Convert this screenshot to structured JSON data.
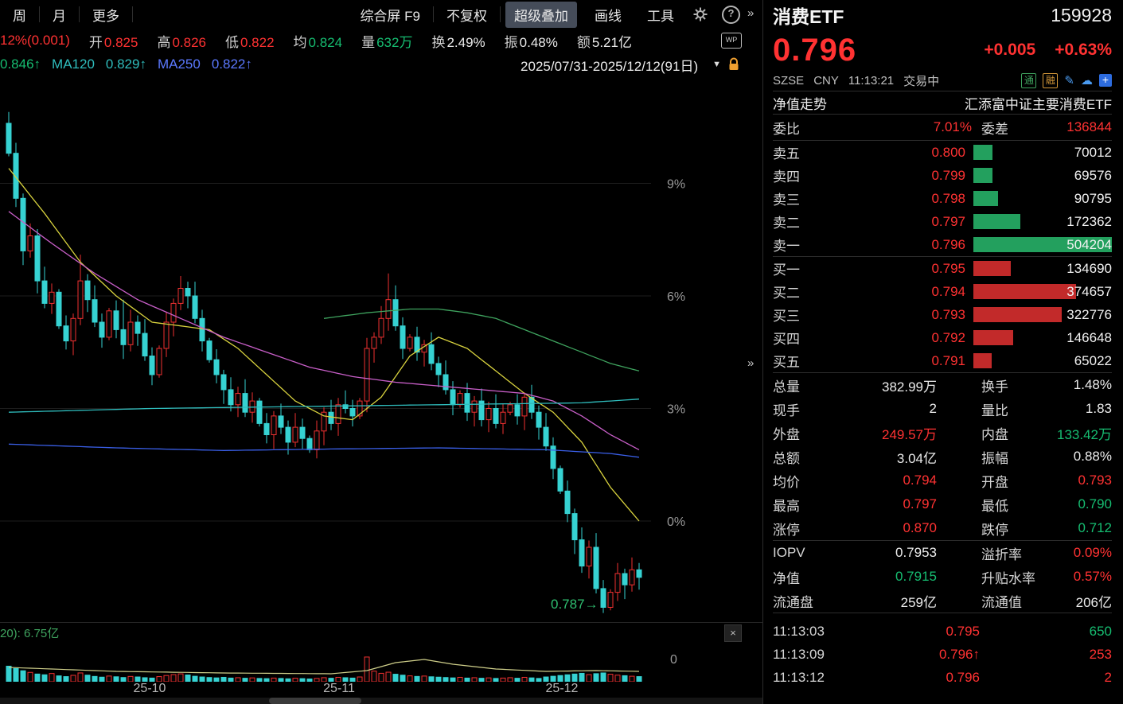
{
  "toolbar": {
    "tabs": [
      "周",
      "月",
      "更多"
    ],
    "tools": [
      "综合屏 F9",
      "不复权",
      "超级叠加",
      "画线",
      "工具"
    ]
  },
  "icons": {
    "help": "?",
    "chevron_top": "»",
    "chevron_mid": "»",
    "edit": "✎",
    "cloud": "☁",
    "add": "+",
    "caret": "▼",
    "close": "×"
  },
  "info_bar": {
    "change": "12%(0.001)",
    "wp": "WP",
    "fields": [
      {
        "label": "开",
        "value": "0.825"
      },
      {
        "label": "高",
        "value": "0.826"
      },
      {
        "label": "低",
        "value": "0.822"
      },
      {
        "label": "均",
        "value": "0.824"
      },
      {
        "label": "量",
        "value": "632万"
      },
      {
        "label": "换",
        "value": "2.49%"
      },
      {
        "label": "振",
        "value": "0.48%"
      },
      {
        "label": "额",
        "value": "5.21亿"
      }
    ]
  },
  "ma_bar": {
    "ma1": "0.846↑",
    "ma2_label": "MA120",
    "ma2": "0.829↑",
    "ma3_label": "MA250",
    "ma3": "0.822↑",
    "date_range": "2025/07/31-2025/12/12(91日)"
  },
  "volume_panel": {
    "header": "20): 6.75亿",
    "zero": "0"
  },
  "chart_data": {
    "type": "candlestick",
    "title": "消费ETF 日K 2025/07/31-2025/12/12(91日)",
    "unit": "percent-change",
    "open_first": 10.6,
    "closes": [
      9.8,
      8.6,
      7.2,
      7.6,
      6.4,
      5.8,
      6.1,
      5.2,
      4.8,
      5.4,
      6.4,
      5.9,
      5.3,
      4.9,
      5.6,
      5.1,
      4.7,
      5.3,
      5.0,
      4.4,
      3.9,
      4.6,
      5.3,
      5.8,
      6.2,
      6.0,
      5.4,
      4.8,
      4.3,
      3.9,
      3.5,
      3.1,
      3.4,
      2.9,
      3.2,
      2.6,
      2.3,
      2.8,
      2.5,
      2.1,
      2.5,
      2.2,
      1.9,
      2.4,
      2.9,
      2.6,
      3.1,
      3.0,
      2.8,
      3.2,
      4.6,
      4.9,
      5.4,
      5.9,
      5.2,
      4.6,
      4.9,
      4.5,
      4.7,
      4.2,
      3.9,
      3.5,
      3.1,
      3.4,
      2.9,
      3.2,
      2.7,
      3.0,
      2.6,
      2.9,
      3.1,
      2.8,
      3.3,
      2.9,
      2.5,
      2.0,
      1.4,
      0.8,
      0.2,
      -0.5,
      -1.2,
      -0.7,
      -1.8,
      -2.3,
      -1.9,
      -1.4,
      -1.7,
      -1.3,
      -1.5
    ],
    "volumes": [
      8.5,
      7.2,
      6.0,
      5.1,
      4.2,
      3.8,
      4.5,
      3.2,
      2.8,
      3.5,
      4.8,
      3.6,
      2.9,
      2.5,
      3.1,
      2.7,
      2.3,
      2.9,
      2.6,
      2.2,
      2.0,
      2.8,
      3.4,
      3.9,
      4.3,
      3.7,
      3.0,
      2.6,
      2.3,
      2.1,
      2.4,
      2.0,
      2.2,
      1.9,
      2.1,
      1.8,
      1.7,
      2.0,
      1.8,
      1.6,
      1.9,
      1.7,
      1.5,
      1.8,
      2.2,
      1.9,
      2.4,
      2.2,
      2.0,
      2.6,
      13.5,
      5.8,
      4.6,
      5.2,
      4.1,
      3.6,
      3.2,
      2.9,
      3.1,
      2.7,
      2.5,
      2.3,
      2.1,
      2.4,
      2.0,
      2.2,
      1.9,
      2.1,
      1.8,
      2.0,
      2.2,
      1.9,
      2.4,
      2.1,
      1.8,
      2.6,
      3.0,
      3.4,
      3.8,
      4.2,
      4.6,
      3.9,
      4.4,
      4.8,
      4.1,
      3.6,
      3.3,
      3.0,
      2.8
    ],
    "wick_overrides": {
      "0": {
        "h": 10.9
      },
      "10": {
        "h": 7.1
      },
      "16": {
        "h": 5.9
      },
      "50": {
        "l": 2.9
      },
      "53": {
        "h": 6.6
      },
      "83": {
        "l": -2.45
      }
    },
    "ma_lines": [
      {
        "name": "ma-line-yellow",
        "color": "#d8d23e",
        "points": [
          [
            0,
            9.4
          ],
          [
            5,
            8.2
          ],
          [
            10,
            6.9
          ],
          [
            15,
            6.0
          ],
          [
            20,
            5.3
          ],
          [
            24,
            5.2
          ],
          [
            28,
            5.1
          ],
          [
            32,
            4.6
          ],
          [
            36,
            3.9
          ],
          [
            40,
            3.2
          ],
          [
            44,
            2.8
          ],
          [
            48,
            2.7
          ],
          [
            52,
            3.3
          ],
          [
            56,
            4.4
          ],
          [
            60,
            4.9
          ],
          [
            64,
            4.6
          ],
          [
            68,
            4.0
          ],
          [
            72,
            3.4
          ],
          [
            76,
            2.9
          ],
          [
            80,
            2.1
          ],
          [
            84,
            0.9
          ],
          [
            88,
            0.0
          ]
        ]
      },
      {
        "name": "ma-line-magenta",
        "color": "#c95fc9",
        "points": [
          [
            0,
            8.25
          ],
          [
            6,
            7.4
          ],
          [
            12,
            6.6
          ],
          [
            18,
            5.9
          ],
          [
            24,
            5.4
          ],
          [
            30,
            4.9
          ],
          [
            36,
            4.5
          ],
          [
            42,
            4.1
          ],
          [
            48,
            3.85
          ],
          [
            54,
            3.7
          ],
          [
            60,
            3.6
          ],
          [
            66,
            3.5
          ],
          [
            72,
            3.4
          ],
          [
            76,
            3.2
          ],
          [
            80,
            2.8
          ],
          [
            84,
            2.3
          ],
          [
            88,
            1.9
          ]
        ]
      },
      {
        "name": "ma-line-green",
        "color": "#3fa45f",
        "points": [
          [
            44,
            5.4
          ],
          [
            50,
            5.55
          ],
          [
            56,
            5.65
          ],
          [
            60,
            5.65
          ],
          [
            64,
            5.55
          ],
          [
            68,
            5.4
          ],
          [
            72,
            5.1
          ],
          [
            76,
            4.8
          ],
          [
            80,
            4.5
          ],
          [
            84,
            4.2
          ],
          [
            88,
            4.0
          ]
        ]
      },
      {
        "name": "ma-line-cyan",
        "color": "#2fbdbd",
        "points": [
          [
            0,
            2.9
          ],
          [
            20,
            3.0
          ],
          [
            40,
            3.05
          ],
          [
            60,
            3.1
          ],
          [
            80,
            3.15
          ],
          [
            88,
            3.25
          ]
        ]
      },
      {
        "name": "ma-line-blue",
        "color": "#3a5fe8",
        "points": [
          [
            0,
            2.05
          ],
          [
            15,
            1.95
          ],
          [
            30,
            1.88
          ],
          [
            45,
            1.92
          ],
          [
            60,
            1.95
          ],
          [
            75,
            1.9
          ],
          [
            84,
            1.8
          ],
          [
            88,
            1.7
          ]
        ]
      }
    ],
    "vol_ma": [
      [
        0,
        18
      ],
      [
        15,
        13
      ],
      [
        30,
        11
      ],
      [
        45,
        10
      ],
      [
        50,
        14
      ],
      [
        54,
        24
      ],
      [
        58,
        28
      ],
      [
        62,
        22
      ],
      [
        68,
        16
      ],
      [
        75,
        13
      ],
      [
        82,
        14
      ],
      [
        88,
        13
      ]
    ],
    "y_ticks": [
      {
        "label": "9%",
        "pct": 9
      },
      {
        "label": "6%",
        "pct": 6
      },
      {
        "label": "3%",
        "pct": 3
      },
      {
        "label": "0%",
        "pct": 0
      }
    ],
    "x_ticks": [
      {
        "label": "25-10"
      },
      {
        "label": "25-11"
      },
      {
        "label": "25-12"
      }
    ],
    "low_tag": {
      "label": "0.787→",
      "pct": -2.2
    },
    "colors": {
      "up": "#f03030",
      "down": "#36d2d2"
    }
  },
  "quote": {
    "name": "消费ETF",
    "code": "159928",
    "price": "0.796",
    "change": "+0.005",
    "change_pct": "+0.63%",
    "exchange": "SZSE",
    "currency": "CNY",
    "time": "11:13:21",
    "status": "交易中",
    "badges": [
      "通",
      "融"
    ],
    "nav_label": "净值走势",
    "fund_name": "汇添富中证主要消费ETF",
    "weibi_label": "委比",
    "weibi": "7.01%",
    "weicha_label": "委差",
    "weicha": "136844"
  },
  "orderbook": {
    "asks": [
      {
        "label": "卖五",
        "price": "0.800",
        "vol": "70012",
        "bar": 14
      },
      {
        "label": "卖四",
        "price": "0.799",
        "vol": "69576",
        "bar": 14
      },
      {
        "label": "卖三",
        "price": "0.798",
        "vol": "90795",
        "bar": 18
      },
      {
        "label": "卖二",
        "price": "0.797",
        "vol": "172362",
        "bar": 34
      },
      {
        "label": "卖一",
        "price": "0.796",
        "vol": "504204",
        "bar": 100
      }
    ],
    "bids": [
      {
        "label": "买一",
        "price": "0.795",
        "vol": "134690",
        "bar": 27
      },
      {
        "label": "买二",
        "price": "0.794",
        "vol": "374657",
        "bar": 74
      },
      {
        "label": "买三",
        "price": "0.793",
        "vol": "322776",
        "bar": 64
      },
      {
        "label": "买四",
        "price": "0.792",
        "vol": "146648",
        "bar": 29
      },
      {
        "label": "买五",
        "price": "0.791",
        "vol": "65022",
        "bar": 13
      }
    ]
  },
  "stats": [
    {
      "l1": "总量",
      "v1": "382.99万",
      "l2": "换手",
      "v2": "1.48%"
    },
    {
      "l1": "现手",
      "v1": "2",
      "l2": "量比",
      "v2": "1.83"
    },
    {
      "l1": "外盘",
      "v1": "249.57万",
      "l2": "内盘",
      "v2": "133.42万"
    },
    {
      "l1": "总额",
      "v1": "3.04亿",
      "l2": "振幅",
      "v2": "0.88%"
    },
    {
      "l1": "均价",
      "v1": "0.794",
      "l2": "开盘",
      "v2": "0.793"
    },
    {
      "l1": "最高",
      "v1": "0.797",
      "l2": "最低",
      "v2": "0.790"
    },
    {
      "l1": "涨停",
      "v1": "0.870",
      "l2": "跌停",
      "v2": "0.712"
    },
    {
      "l1": "IOPV",
      "v1": "0.7953",
      "l2": "溢折率",
      "v2": "0.09%"
    },
    {
      "l1": "净值",
      "v1": "0.7915",
      "l2": "升贴水率",
      "v2": "0.57%"
    },
    {
      "l1": "流通盘",
      "v1": "259亿",
      "l2": "流通值",
      "v2": "206亿"
    }
  ],
  "ticks": [
    {
      "time": "11:13:03",
      "price": "0.795",
      "arrow": "",
      "vol": "650"
    },
    {
      "time": "11:13:09",
      "price": "0.796",
      "arrow": "↑",
      "vol": "253"
    },
    {
      "time": "11:13:12",
      "price": "0.796",
      "arrow": "",
      "vol": "2"
    }
  ]
}
